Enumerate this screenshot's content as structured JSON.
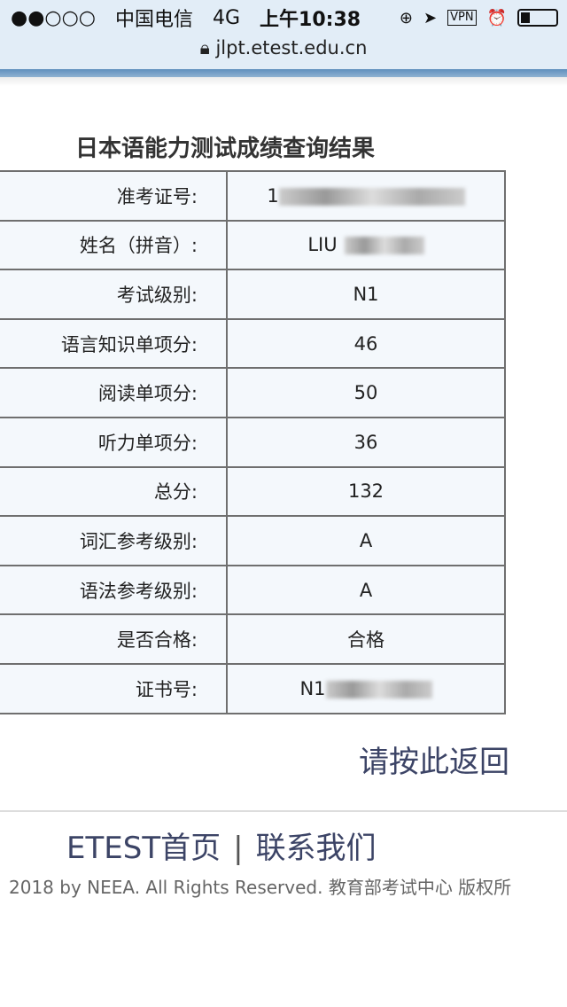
{
  "status_bar": {
    "signal": "●●○○○",
    "carrier": "中国电信",
    "network": "4G",
    "time": "上午10:38",
    "vpn": "VPN"
  },
  "address_bar": {
    "url": "jlpt.etest.edu.cn"
  },
  "page": {
    "title": "日本语能力测试成绩查询结果",
    "rows": [
      {
        "label": "准考证号:",
        "value": "1"
      },
      {
        "label": "姓名（拼音）:",
        "value": "LIU"
      },
      {
        "label": "考试级别:",
        "value": "N1"
      },
      {
        "label": "语言知识单项分:",
        "value": "46"
      },
      {
        "label": "阅读单项分:",
        "value": "50"
      },
      {
        "label": "听力单项分:",
        "value": "36"
      },
      {
        "label": "总分:",
        "value": "132"
      },
      {
        "label": "词汇参考级别:",
        "value": "A"
      },
      {
        "label": "语法参考级别:",
        "value": "A"
      },
      {
        "label": "是否合格:",
        "value": "合格"
      },
      {
        "label": "证书号:",
        "value": "N1"
      }
    ],
    "back_link": "请按此返回"
  },
  "footer": {
    "home": "ETEST首页",
    "separator": "|",
    "contact": "联系我们",
    "copyright": "2018 by NEEA. All Rights Reserved. 教育部考试中心 版权所"
  }
}
